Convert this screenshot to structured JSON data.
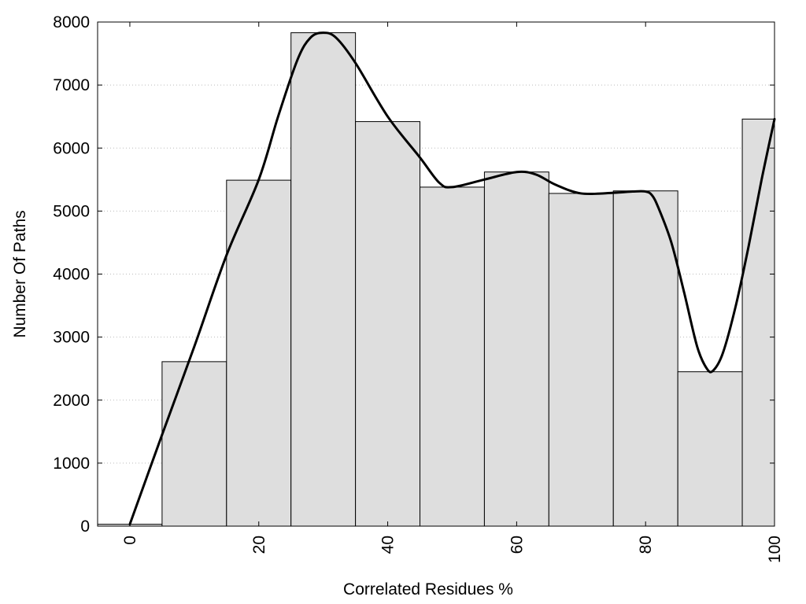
{
  "chart_data": {
    "type": "bar",
    "title": "",
    "xlabel": "Correlated Residues %",
    "ylabel": "Number Of Paths",
    "xlim": [
      -5,
      100
    ],
    "ylim": [
      0,
      8000
    ],
    "x_ticks": [
      "0",
      "20",
      "40",
      "60",
      "80",
      "100"
    ],
    "y_ticks": [
      "0",
      "1000",
      "2000",
      "3000",
      "4000",
      "5000",
      "6000",
      "7000",
      "8000"
    ],
    "grid": "horizontal dotted",
    "legend": "none",
    "bins": [
      {
        "x": 0,
        "value": 30
      },
      {
        "x": 10,
        "value": 2610
      },
      {
        "x": 20,
        "value": 5490
      },
      {
        "x": 30,
        "value": 7830
      },
      {
        "x": 40,
        "value": 6420
      },
      {
        "x": 50,
        "value": 5380
      },
      {
        "x": 60,
        "value": 5620
      },
      {
        "x": 70,
        "value": 5280
      },
      {
        "x": 80,
        "value": 5320
      },
      {
        "x": 90,
        "value": 2450
      },
      {
        "x": 100,
        "value": 6460
      }
    ],
    "bin_width": 10,
    "smooth_curve": [
      [
        0,
        30
      ],
      [
        5,
        1450
      ],
      [
        10,
        2850
      ],
      [
        15,
        4300
      ],
      [
        20,
        5500
      ],
      [
        23,
        6500
      ],
      [
        26,
        7400
      ],
      [
        28,
        7750
      ],
      [
        30,
        7830
      ],
      [
        32,
        7750
      ],
      [
        35,
        7350
      ],
      [
        40,
        6500
      ],
      [
        45,
        5850
      ],
      [
        48,
        5450
      ],
      [
        50,
        5380
      ],
      [
        55,
        5500
      ],
      [
        60,
        5620
      ],
      [
        63,
        5580
      ],
      [
        66,
        5420
      ],
      [
        70,
        5280
      ],
      [
        75,
        5290
      ],
      [
        78,
        5310
      ],
      [
        80,
        5310
      ],
      [
        81,
        5250
      ],
      [
        82,
        5050
      ],
      [
        84,
        4500
      ],
      [
        86,
        3700
      ],
      [
        88,
        2850
      ],
      [
        89.5,
        2500
      ],
      [
        90.5,
        2470
      ],
      [
        92,
        2750
      ],
      [
        94,
        3500
      ],
      [
        96,
        4450
      ],
      [
        98,
        5500
      ],
      [
        100,
        6460
      ]
    ],
    "colors": {
      "bar_fill": "#dedede",
      "bar_stroke": "#000000",
      "curve": "#000000",
      "grid": "#bbbbbb"
    }
  }
}
